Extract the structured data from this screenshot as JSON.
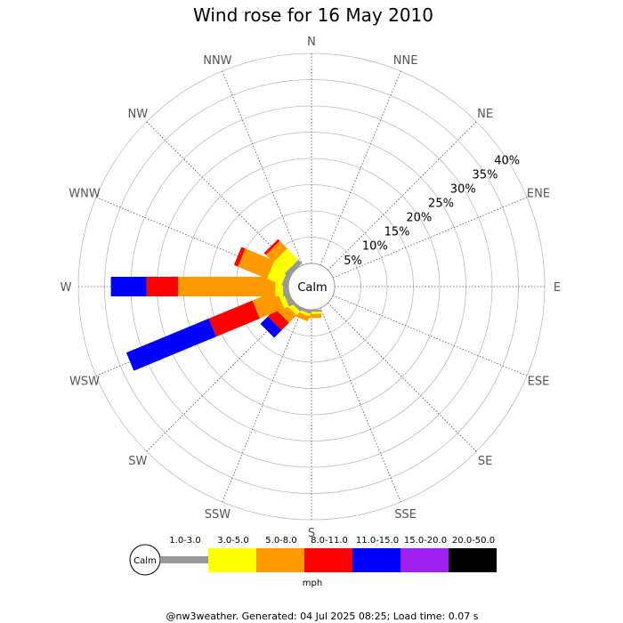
{
  "chart_data": {
    "type": "wind-rose",
    "title": "Wind rose for 16 May 2010",
    "center_label": "Calm",
    "directions": [
      "N",
      "NNE",
      "NE",
      "ENE",
      "E",
      "ESE",
      "SE",
      "SSE",
      "S",
      "SSW",
      "SW",
      "WSW",
      "W",
      "WNW",
      "NW",
      "NNW"
    ],
    "radial_ticks": [
      "5%",
      "10%",
      "15%",
      "20%",
      "25%",
      "30%",
      "35%",
      "40%"
    ],
    "radial_max_percent": 40,
    "calm_percent": 4,
    "speed_bins": [
      "1.0-3.0",
      "3.0-5.0",
      "5.0-8.0",
      "8.0-11.0",
      "11.0-15.0",
      "15.0-20.0",
      "20.0-50.0"
    ],
    "bin_colors": [
      "#999999",
      "#ffff00",
      "#ff9900",
      "#ff0000",
      "#0000ff",
      "#a020f0",
      "#000000"
    ],
    "series": [
      {
        "direction": "S",
        "cumulative_percent": [
          0.4,
          0.8,
          1.6,
          1.6,
          1.6,
          1.6,
          1.6
        ]
      },
      {
        "direction": "SSW",
        "cumulative_percent": [
          0.5,
          1.0,
          2.0,
          2.0,
          2.0,
          2.0,
          2.0
        ]
      },
      {
        "direction": "SW",
        "cumulative_percent": [
          0.5,
          1.5,
          3.5,
          5.5,
          7.5,
          7.5,
          7.5
        ]
      },
      {
        "direction": "WSW",
        "cumulative_percent": [
          1.0,
          2.0,
          7.0,
          16.0,
          33.0,
          33.0,
          33.0
        ]
      },
      {
        "direction": "W",
        "cumulative_percent": [
          1.0,
          2.5,
          21.0,
          27.0,
          33.8,
          33.8,
          33.8
        ]
      },
      {
        "direction": "WNW",
        "cumulative_percent": [
          1.0,
          4.0,
          10.0,
          10.8,
          10.8,
          10.8,
          10.8
        ]
      },
      {
        "direction": "NW",
        "cumulative_percent": [
          1.0,
          4.0,
          6.0,
          6.5,
          6.5,
          6.5,
          6.5
        ]
      }
    ],
    "legend_unit": "mph",
    "grid": true
  },
  "footer": "@nw3weather. Generated: 04 Jul 2025 08:25; Load time: 0.07 s"
}
